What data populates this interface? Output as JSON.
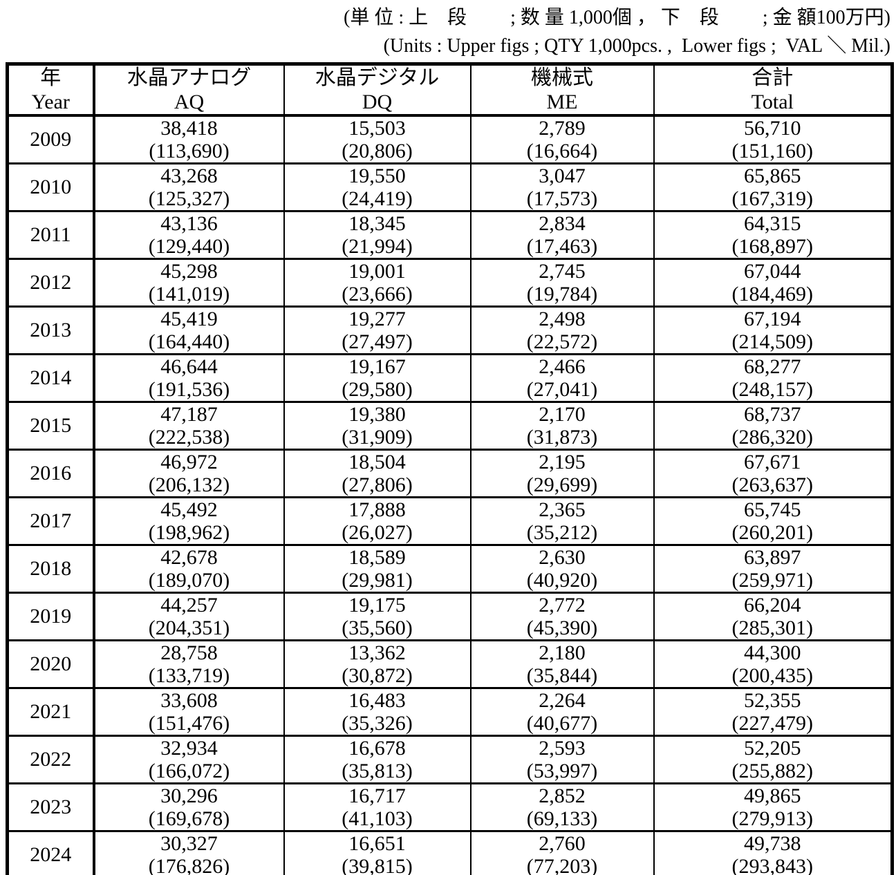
{
  "units_note": {
    "jp": "(単 位 : 上　段　　 ; 数 量 1,000個 ， 下　段　　 ; 金 額100万円)",
    "en": "(Units : Upper figs ; QTY 1,000pcs. ,  Lower figs ;  VAL ＼ Mil.)"
  },
  "table": {
    "columns": [
      {
        "jp": "年",
        "en": "Year"
      },
      {
        "jp": "水晶アナログ",
        "en": "AQ"
      },
      {
        "jp": "水晶デジタル",
        "en": "DQ"
      },
      {
        "jp": "機械式",
        "en": "ME"
      },
      {
        "jp": "合計",
        "en": "Total"
      }
    ],
    "rows": [
      {
        "year": "2009",
        "cells": [
          {
            "qty": "38,418",
            "val": "(113,690)"
          },
          {
            "qty": "15,503",
            "val": "(20,806)"
          },
          {
            "qty": "2,789",
            "val": "(16,664)"
          },
          {
            "qty": "56,710",
            "val": "(151,160)"
          }
        ]
      },
      {
        "year": "2010",
        "cells": [
          {
            "qty": "43,268",
            "val": "(125,327)"
          },
          {
            "qty": "19,550",
            "val": "(24,419)"
          },
          {
            "qty": "3,047",
            "val": "(17,573)"
          },
          {
            "qty": "65,865",
            "val": "(167,319)"
          }
        ]
      },
      {
        "year": "2011",
        "cells": [
          {
            "qty": "43,136",
            "val": "(129,440)"
          },
          {
            "qty": "18,345",
            "val": "(21,994)"
          },
          {
            "qty": "2,834",
            "val": "(17,463)"
          },
          {
            "qty": "64,315",
            "val": "(168,897)"
          }
        ]
      },
      {
        "year": "2012",
        "cells": [
          {
            "qty": "45,298",
            "val": "(141,019)"
          },
          {
            "qty": "19,001",
            "val": "(23,666)"
          },
          {
            "qty": "2,745",
            "val": "(19,784)"
          },
          {
            "qty": "67,044",
            "val": "(184,469)"
          }
        ]
      },
      {
        "year": "2013",
        "cells": [
          {
            "qty": "45,419",
            "val": "(164,440)"
          },
          {
            "qty": "19,277",
            "val": "(27,497)"
          },
          {
            "qty": "2,498",
            "val": "(22,572)"
          },
          {
            "qty": "67,194",
            "val": "(214,509)"
          }
        ]
      },
      {
        "year": "2014",
        "cells": [
          {
            "qty": "46,644",
            "val": "(191,536)"
          },
          {
            "qty": "19,167",
            "val": "(29,580)"
          },
          {
            "qty": "2,466",
            "val": "(27,041)"
          },
          {
            "qty": "68,277",
            "val": "(248,157)"
          }
        ]
      },
      {
        "year": "2015",
        "cells": [
          {
            "qty": "47,187",
            "val": "(222,538)"
          },
          {
            "qty": "19,380",
            "val": "(31,909)"
          },
          {
            "qty": "2,170",
            "val": "(31,873)"
          },
          {
            "qty": "68,737",
            "val": "(286,320)"
          }
        ]
      },
      {
        "year": "2016",
        "cells": [
          {
            "qty": "46,972",
            "val": "(206,132)"
          },
          {
            "qty": "18,504",
            "val": "(27,806)"
          },
          {
            "qty": "2,195",
            "val": "(29,699)"
          },
          {
            "qty": "67,671",
            "val": "(263,637)"
          }
        ]
      },
      {
        "year": "2017",
        "cells": [
          {
            "qty": "45,492",
            "val": "(198,962)"
          },
          {
            "qty": "17,888",
            "val": "(26,027)"
          },
          {
            "qty": "2,365",
            "val": "(35,212)"
          },
          {
            "qty": "65,745",
            "val": "(260,201)"
          }
        ]
      },
      {
        "year": "2018",
        "cells": [
          {
            "qty": "42,678",
            "val": "(189,070)"
          },
          {
            "qty": "18,589",
            "val": "(29,981)"
          },
          {
            "qty": "2,630",
            "val": "(40,920)"
          },
          {
            "qty": "63,897",
            "val": "(259,971)"
          }
        ]
      },
      {
        "year": "2019",
        "cells": [
          {
            "qty": "44,257",
            "val": "(204,351)"
          },
          {
            "qty": "19,175",
            "val": "(35,560)"
          },
          {
            "qty": "2,772",
            "val": "(45,390)"
          },
          {
            "qty": "66,204",
            "val": "(285,301)"
          }
        ]
      },
      {
        "year": "2020",
        "cells": [
          {
            "qty": "28,758",
            "val": "(133,719)"
          },
          {
            "qty": "13,362",
            "val": "(30,872)"
          },
          {
            "qty": "2,180",
            "val": "(35,844)"
          },
          {
            "qty": "44,300",
            "val": "(200,435)"
          }
        ]
      },
      {
        "year": "2021",
        "cells": [
          {
            "qty": "33,608",
            "val": "(151,476)"
          },
          {
            "qty": "16,483",
            "val": "(35,326)"
          },
          {
            "qty": "2,264",
            "val": "(40,677)"
          },
          {
            "qty": "52,355",
            "val": "(227,479)"
          }
        ]
      },
      {
        "year": "2022",
        "cells": [
          {
            "qty": "32,934",
            "val": "(166,072)"
          },
          {
            "qty": "16,678",
            "val": "(35,813)"
          },
          {
            "qty": "2,593",
            "val": "(53,997)"
          },
          {
            "qty": "52,205",
            "val": "(255,882)"
          }
        ]
      },
      {
        "year": "2023",
        "cells": [
          {
            "qty": "30,296",
            "val": "(169,678)"
          },
          {
            "qty": "16,717",
            "val": "(41,103)"
          },
          {
            "qty": "2,852",
            "val": "(69,133)"
          },
          {
            "qty": "49,865",
            "val": "(279,913)"
          }
        ]
      },
      {
        "year": "2024",
        "cells": [
          {
            "qty": "30,327",
            "val": "(176,826)"
          },
          {
            "qty": "16,651",
            "val": "(39,815)"
          },
          {
            "qty": "2,760",
            "val": "(77,203)"
          },
          {
            "qty": "49,738",
            "val": "(293,843)"
          }
        ]
      }
    ]
  }
}
